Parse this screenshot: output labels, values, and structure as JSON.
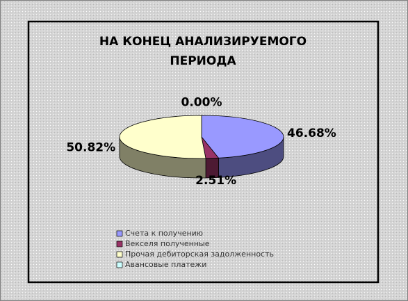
{
  "chart_data": {
    "type": "pie3d",
    "title": [
      "НА КОНЕЦ АНАЛИЗИРУЕМОГО",
      "ПЕРИОДА"
    ],
    "categories": [
      "Счета к получению",
      "Векселя полученные",
      "Прочая дебиторская задолженность",
      "Авансовые платежи"
    ],
    "values": [
      46.68,
      2.51,
      50.82,
      0
    ],
    "value_labels": [
      "46.68%",
      "2.51%",
      "50.82%",
      "0.00%"
    ],
    "colors": [
      "#9999ff",
      "#993366",
      "#ffffcc",
      "#ccffff"
    ],
    "side_colors": [
      "#4d4d80",
      "#4d1a33",
      "#808066",
      "#668080"
    ]
  }
}
